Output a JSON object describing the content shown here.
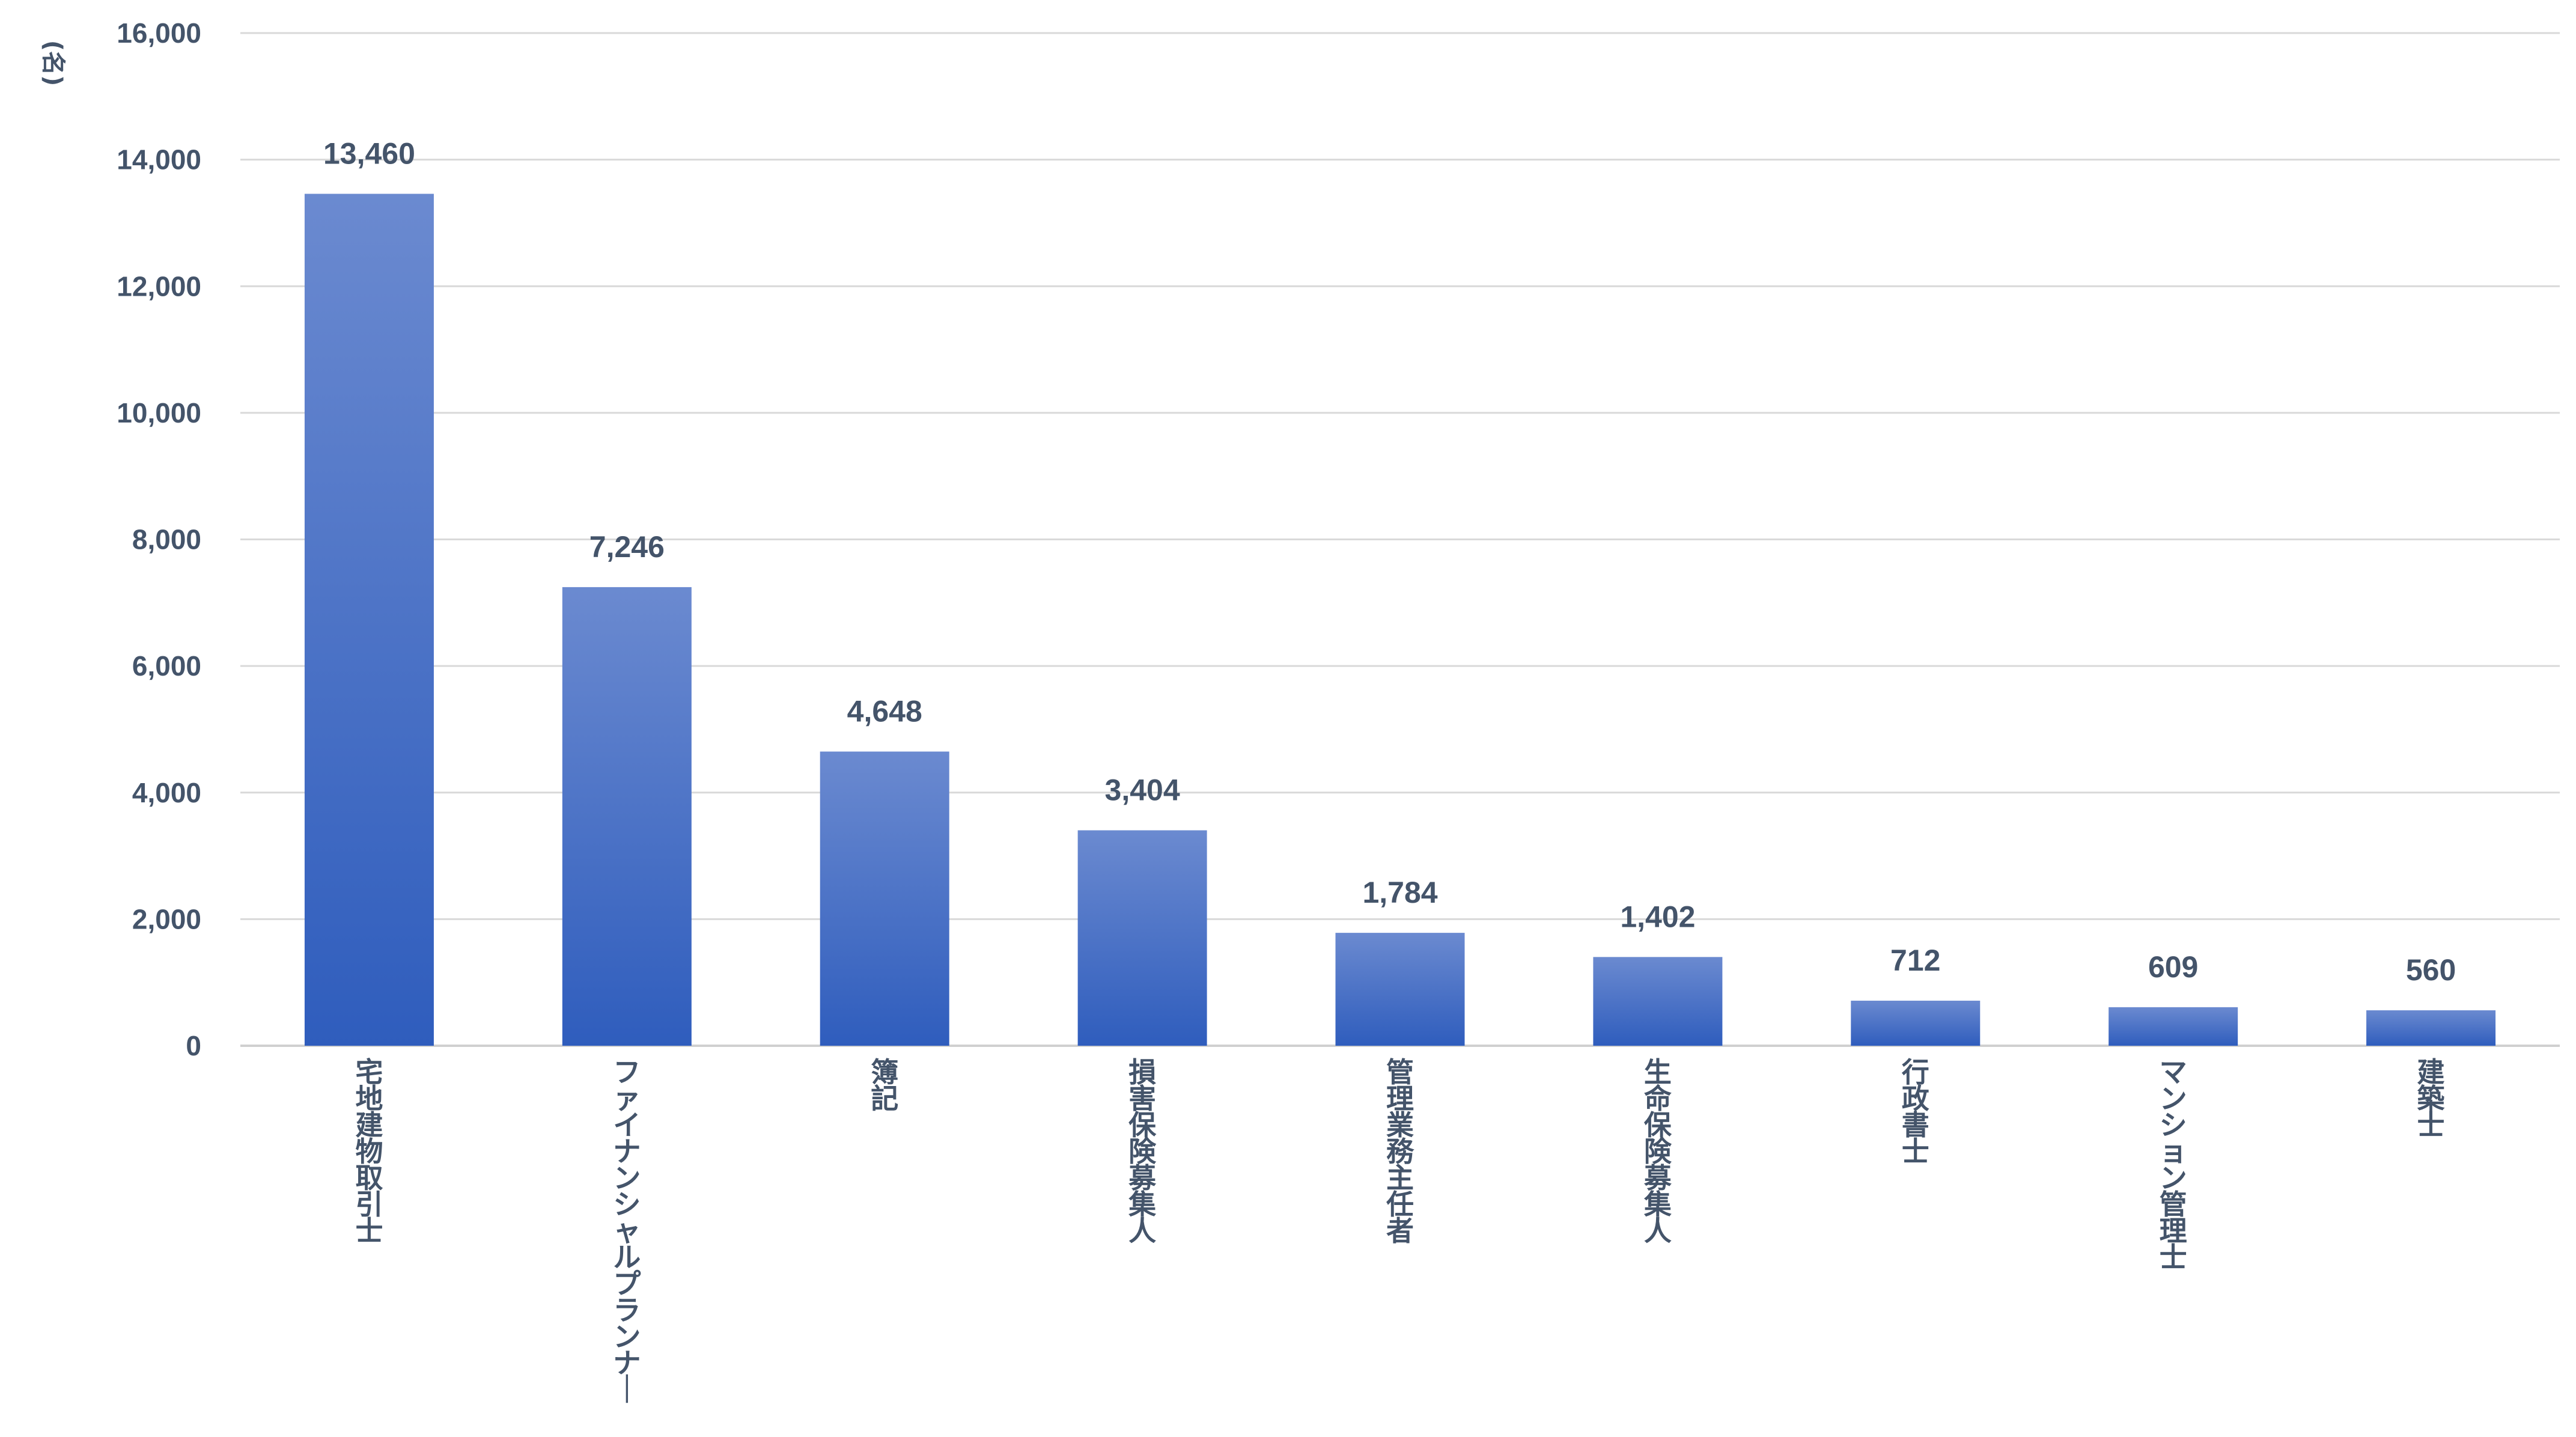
{
  "chart_data": {
    "type": "bar",
    "unit_label": "(名)",
    "categories": [
      "宅地建物取引士",
      "ファイナンシャルプランナー",
      "簿記",
      "損害保険募集人",
      "管理業務主任者",
      "生命保険募集人",
      "行政書士",
      "マンション管理士",
      "建築士"
    ],
    "values": [
      13460,
      7246,
      4648,
      3404,
      1784,
      1402,
      712,
      609,
      560
    ],
    "value_labels": [
      "13,460",
      "7,246",
      "4,648",
      "3,404",
      "1,784",
      "1,402",
      "712",
      "609",
      "560"
    ],
    "y_ticks": [
      "0",
      "2,000",
      "4,000",
      "6,000",
      "8,000",
      "10,000",
      "12,000",
      "14,000",
      "16,000"
    ],
    "ylim": [
      0,
      16000
    ],
    "grid": true,
    "legend": "none",
    "colors": {
      "bar_top": "#6b8ad0",
      "bar_bottom": "#2f5dbd",
      "text": "#44546a",
      "grid": "#d9d9d9"
    }
  }
}
